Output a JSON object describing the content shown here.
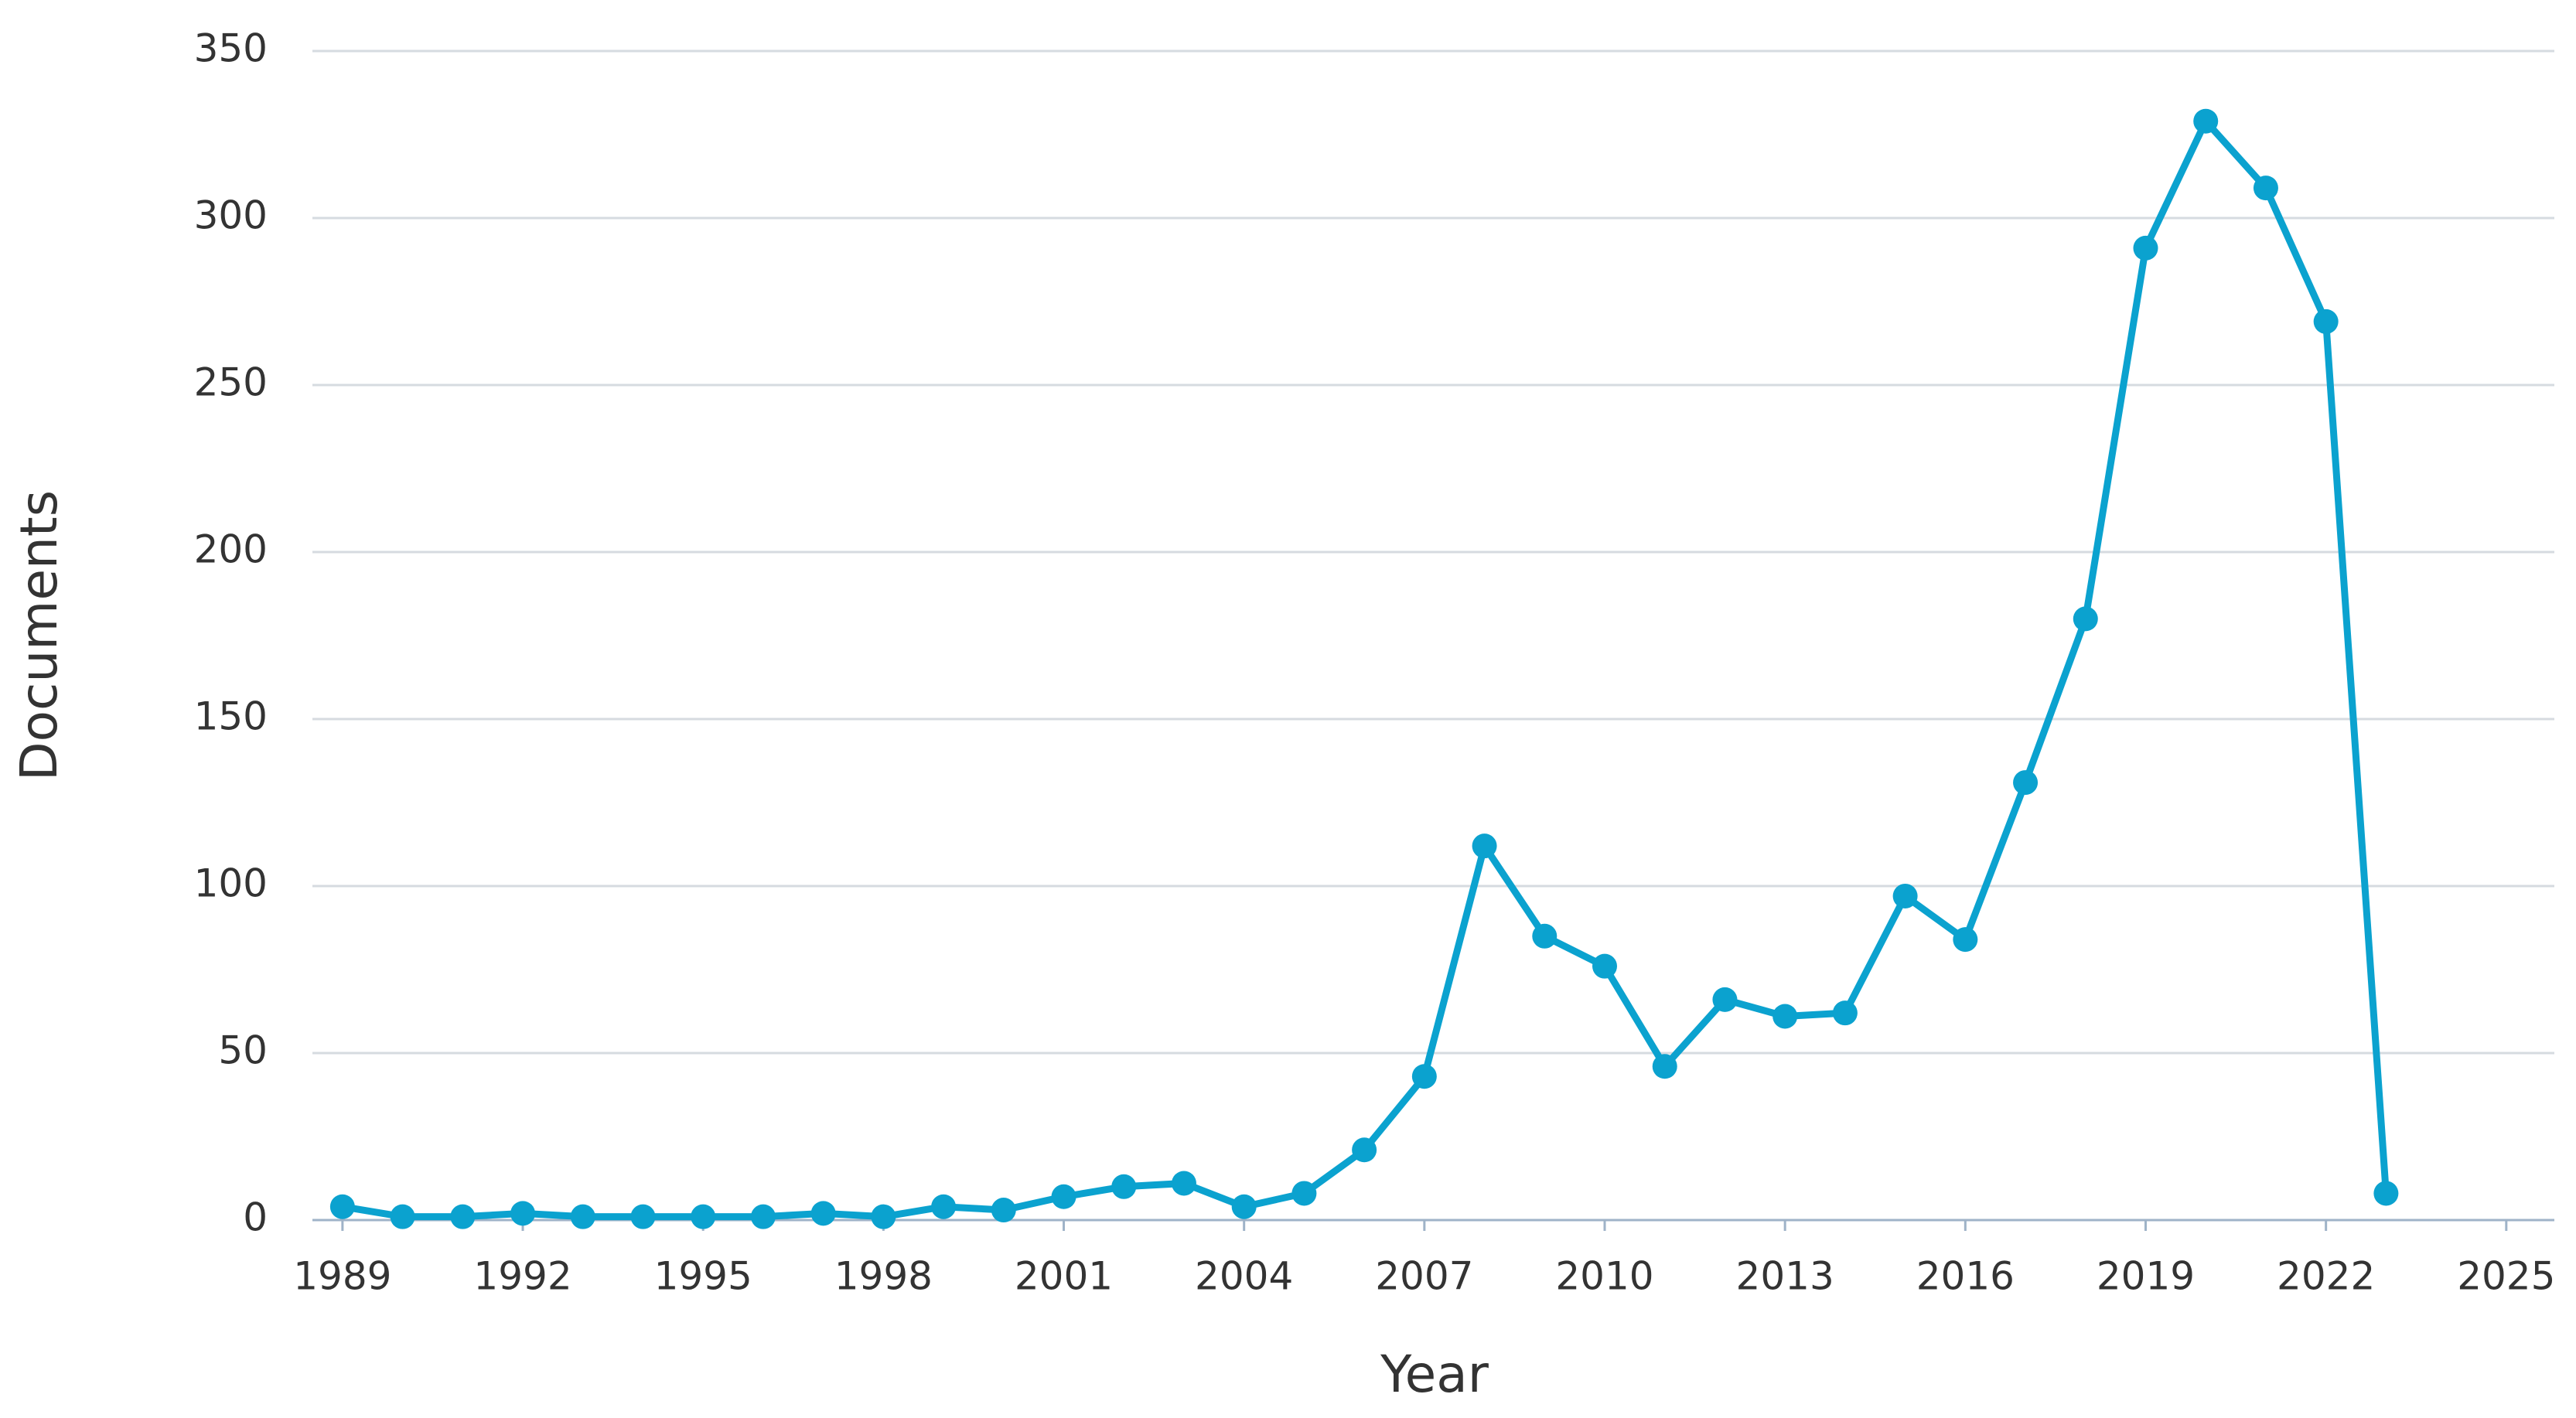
{
  "chart_data": {
    "type": "line",
    "x_label": "Year",
    "y_label": "Documents",
    "x": [
      1989,
      1990,
      1991,
      1992,
      1993,
      1994,
      1995,
      1996,
      1997,
      1998,
      1999,
      2000,
      2001,
      2002,
      2003,
      2004,
      2005,
      2006,
      2007,
      2008,
      2009,
      2010,
      2011,
      2012,
      2013,
      2014,
      2015,
      2016,
      2017,
      2018,
      2019,
      2020,
      2021,
      2022,
      2023
    ],
    "series": [
      {
        "name": "Documents",
        "color": "#0ba2cf",
        "values": [
          4,
          1,
          1,
          2,
          1,
          1,
          1,
          1,
          2,
          1,
          4,
          3,
          7,
          10,
          11,
          4,
          8,
          21,
          43,
          112,
          85,
          76,
          46,
          66,
          61,
          62,
          97,
          84,
          131,
          180,
          291,
          329,
          309,
          269,
          8
        ]
      }
    ],
    "xlim": [
      1988.5,
      2025.8
    ],
    "xticks": [
      1989,
      1992,
      1995,
      1998,
      2001,
      2004,
      2007,
      2010,
      2013,
      2016,
      2019,
      2022,
      2025
    ],
    "ylim": [
      0,
      350
    ],
    "yticks": [
      0,
      50,
      100,
      150,
      200,
      250,
      300,
      350
    ],
    "grid": true
  }
}
